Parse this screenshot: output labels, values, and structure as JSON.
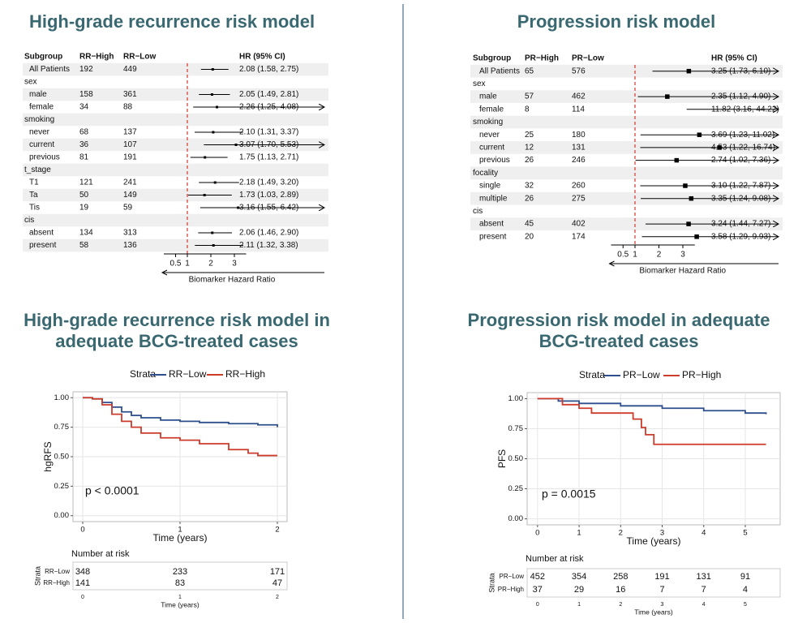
{
  "chart_data": [
    {
      "type": "forest",
      "title": "High-grade recurrence risk model",
      "columns": [
        "Subgroup",
        "RR−High",
        "RR−Low",
        "HR (95% CI)"
      ],
      "rows": [
        {
          "label": "All Patients",
          "n_high": 192,
          "n_low": 449,
          "hr": 2.08,
          "lo": 1.58,
          "hi": 2.75,
          "value_label": "2.08 (1.58, 2.75)"
        },
        {
          "label": "sex"
        },
        {
          "label": "male",
          "n_high": 158,
          "n_low": 361,
          "hr": 2.05,
          "lo": 1.49,
          "hi": 2.81,
          "value_label": "2.05 (1.49, 2.81)"
        },
        {
          "label": "female",
          "n_high": 34,
          "n_low": 88,
          "hr": 2.26,
          "lo": 1.25,
          "hi": 4.08,
          "value_label": "2.26 (1.25, 4.08)"
        },
        {
          "label": "smoking"
        },
        {
          "label": "never",
          "n_high": 68,
          "n_low": 137,
          "hr": 2.1,
          "lo": 1.31,
          "hi": 3.37,
          "value_label": "2.10 (1.31, 3.37)"
        },
        {
          "label": "current",
          "n_high": 36,
          "n_low": 107,
          "hr": 3.07,
          "lo": 1.7,
          "hi": 5.53,
          "value_label": "3.07 (1.70, 5.53)"
        },
        {
          "label": "previous",
          "n_high": 81,
          "n_low": 191,
          "hr": 1.75,
          "lo": 1.13,
          "hi": 2.71,
          "value_label": "1.75 (1.13, 2.71)"
        },
        {
          "label": "t_stage"
        },
        {
          "label": "T1",
          "n_high": 121,
          "n_low": 241,
          "hr": 2.18,
          "lo": 1.49,
          "hi": 3.2,
          "value_label": "2.18 (1.49, 3.20)"
        },
        {
          "label": "Ta",
          "n_high": 50,
          "n_low": 149,
          "hr": 1.73,
          "lo": 1.03,
          "hi": 2.89,
          "value_label": "1.73 (1.03, 2.89)"
        },
        {
          "label": "Tis",
          "n_high": 19,
          "n_low": 59,
          "hr": 3.16,
          "lo": 1.55,
          "hi": 6.42,
          "value_label": "3.16 (1.55, 6.42)"
        },
        {
          "label": "cis"
        },
        {
          "label": "absent",
          "n_high": 134,
          "n_low": 313,
          "hr": 2.06,
          "lo": 1.46,
          "hi": 2.9,
          "value_label": "2.06 (1.46, 2.90)"
        },
        {
          "label": "present",
          "n_high": 58,
          "n_low": 136,
          "hr": 2.11,
          "lo": 1.32,
          "hi": 3.38,
          "value_label": "2.11 (1.32, 3.38)"
        }
      ],
      "xlim": [
        0,
        3.5
      ],
      "xticks": [
        0.5,
        1,
        2,
        3
      ],
      "reference": 1,
      "reference_color": "#d9372b",
      "xlabel": "Biomarker Hazard Ratio"
    },
    {
      "type": "forest",
      "title": "Progression risk model",
      "columns": [
        "Subgroup",
        "PR−High",
        "PR−Low",
        "HR (95% CI)"
      ],
      "rows": [
        {
          "label": "All Patients",
          "n_high": 65,
          "n_low": 576,
          "hr": 3.25,
          "lo": 1.73,
          "hi": 6.1,
          "value_label": "3.25 (1.73, 6.10)"
        },
        {
          "label": "sex"
        },
        {
          "label": "male",
          "n_high": 57,
          "n_low": 462,
          "hr": 2.35,
          "lo": 1.12,
          "hi": 4.9,
          "value_label": "2.35 (1.12, 4.90)"
        },
        {
          "label": "female",
          "n_high": 8,
          "n_low": 114,
          "hr": 11.82,
          "lo": 3.16,
          "hi": 44.22,
          "value_label": "11.82 (3.16, 44.22)"
        },
        {
          "label": "smoking"
        },
        {
          "label": "never",
          "n_high": 25,
          "n_low": 180,
          "hr": 3.69,
          "lo": 1.23,
          "hi": 11.02,
          "value_label": "3.69 (1.23, 11.02)"
        },
        {
          "label": "current",
          "n_high": 12,
          "n_low": 131,
          "hr": 4.53,
          "lo": 1.22,
          "hi": 16.74,
          "value_label": "4.53 (1.22, 16.74)"
        },
        {
          "label": "previous",
          "n_high": 26,
          "n_low": 246,
          "hr": 2.74,
          "lo": 1.02,
          "hi": 7.36,
          "value_label": "2.74 (1.02, 7.36)"
        },
        {
          "label": "focality"
        },
        {
          "label": "single",
          "n_high": 32,
          "n_low": 260,
          "hr": 3.1,
          "lo": 1.22,
          "hi": 7.87,
          "value_label": "3.10 (1.22, 7.87)"
        },
        {
          "label": "multiple",
          "n_high": 26,
          "n_low": 275,
          "hr": 3.35,
          "lo": 1.24,
          "hi": 9.08,
          "value_label": "3.35 (1.24, 9.08)"
        },
        {
          "label": "cis"
        },
        {
          "label": "absent",
          "n_high": 45,
          "n_low": 402,
          "hr": 3.24,
          "lo": 1.44,
          "hi": 7.27,
          "value_label": "3.24 (1.44, 7.27)"
        },
        {
          "label": "present",
          "n_high": 20,
          "n_low": 174,
          "hr": 3.58,
          "lo": 1.29,
          "hi": 9.93,
          "value_label": "3.58 (1.29, 9.93)"
        }
      ],
      "xlim": [
        0,
        3.5
      ],
      "xticks": [
        0.5,
        1,
        2,
        3
      ],
      "reference": 1,
      "reference_color": "#d9372b",
      "xlabel": "Biomarker Hazard Ratio"
    },
    {
      "type": "survival",
      "title": "High-grade recurrence risk model in adequate BCG-treated cases",
      "legend_title": "Strata",
      "series": [
        {
          "name": "RR−Low",
          "color": "#2d4f8e",
          "x": [
            0,
            0.1,
            0.2,
            0.3,
            0.4,
            0.5,
            0.6,
            0.8,
            1.0,
            1.2,
            1.5,
            1.8,
            2.0
          ],
          "values": [
            1,
            0.99,
            0.96,
            0.92,
            0.88,
            0.85,
            0.83,
            0.81,
            0.8,
            0.79,
            0.78,
            0.77,
            0.75
          ],
          "at_risk": [
            348,
            233,
            171
          ]
        },
        {
          "name": "RR−High",
          "color": "#cd3b2b",
          "x": [
            0,
            0.1,
            0.2,
            0.3,
            0.4,
            0.5,
            0.6,
            0.8,
            1.0,
            1.2,
            1.5,
            1.7,
            1.8,
            2.0
          ],
          "values": [
            1,
            0.99,
            0.94,
            0.86,
            0.8,
            0.75,
            0.7,
            0.66,
            0.64,
            0.61,
            0.56,
            0.53,
            0.51,
            0.51
          ],
          "at_risk": [
            141,
            83,
            47
          ]
        }
      ],
      "xlim": [
        -0.1,
        2.1
      ],
      "xticks": [
        0,
        1,
        2
      ],
      "ylim": [
        -0.05,
        1.05
      ],
      "yticks": [
        {
          "value": 0,
          "label": "0.00"
        },
        {
          "value": 0.25,
          "label": "0.25"
        },
        {
          "value": 0.5,
          "label": "0.50"
        },
        {
          "value": 0.75,
          "label": "0.75"
        },
        {
          "value": 1,
          "label": "1.00"
        }
      ],
      "xlabel": "Time (years)",
      "ylabel": "hgRFS",
      "annotation": "p < 0.0001",
      "grid": true,
      "risk_table": {
        "title": "Number at risk",
        "strata_label": "Strata",
        "times": [
          0,
          1,
          2
        ],
        "xlabel": "Time (years)"
      }
    },
    {
      "type": "survival",
      "title": "Progression risk model in adequate BCG-treated cases",
      "legend_title": "Strata",
      "series": [
        {
          "name": "PR−Low",
          "color": "#2d4f8e",
          "x": [
            0,
            0.5,
            1,
            2,
            3,
            4,
            5,
            5.5
          ],
          "values": [
            1,
            0.98,
            0.96,
            0.94,
            0.92,
            0.9,
            0.88,
            0.87
          ],
          "at_risk": [
            452,
            354,
            258,
            191,
            131,
            91
          ]
        },
        {
          "name": "PR−High",
          "color": "#cd3b2b",
          "x": [
            0,
            0.6,
            1.0,
            1.3,
            2.2,
            2.3,
            2.5,
            2.6,
            2.8,
            5.5
          ],
          "values": [
            1,
            0.95,
            0.92,
            0.88,
            0.88,
            0.83,
            0.76,
            0.7,
            0.62,
            0.62
          ],
          "at_risk": [
            37,
            29,
            16,
            7,
            7,
            4
          ]
        }
      ],
      "xlim": [
        -0.25,
        5.84
      ],
      "xticks": [
        0,
        1,
        2,
        3,
        4,
        5
      ],
      "ylim": [
        -0.05,
        1.05
      ],
      "yticks": [
        {
          "value": 0,
          "label": "0.00"
        },
        {
          "value": 0.25,
          "label": "0.25"
        },
        {
          "value": 0.5,
          "label": "0.50"
        },
        {
          "value": 0.75,
          "label": "0.75"
        },
        {
          "value": 1,
          "label": "1.00"
        }
      ],
      "xlabel": "Time (years)",
      "ylabel": "PFS",
      "annotation": "p = 0.0015",
      "grid": true,
      "risk_table": {
        "title": "Number at risk",
        "strata_label": "Strata",
        "times": [
          0,
          1,
          2,
          3,
          4,
          5
        ],
        "xlabel": "Time (years)"
      }
    }
  ]
}
